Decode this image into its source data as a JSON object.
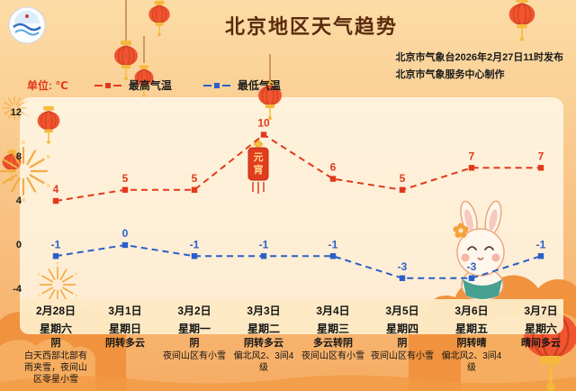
{
  "header": {
    "title": "北京地区天气趋势",
    "issued_by": "北京市气象台2026年2月27日11时发布",
    "produced_by": "北京市气象服务中心制作",
    "unit_label": "单位: ℃"
  },
  "chart_data": {
    "type": "line",
    "title": "北京地区天气趋势",
    "categories": [
      "2月28日",
      "3月1日",
      "3月2日",
      "3月3日",
      "3月4日",
      "3月5日",
      "3月6日",
      "3月7日"
    ],
    "weekdays": [
      "星期六",
      "星期日",
      "星期一",
      "星期二",
      "星期三",
      "星期四",
      "星期五",
      "星期六"
    ],
    "series": [
      {
        "name": "最高气温",
        "color": "#e2391b",
        "values": [
          4,
          5,
          5,
          10,
          6,
          5,
          7,
          7
        ]
      },
      {
        "name": "最低气温",
        "color": "#2a5fc7",
        "values": [
          -1,
          0,
          -1,
          -1,
          -1,
          -3,
          -3,
          -1
        ]
      }
    ],
    "ylim": [
      -4,
      12
    ],
    "yticks": [
      12,
      8,
      4,
      0,
      -4
    ],
    "grid": false,
    "legend_position": "top-left",
    "line_style": "dashed",
    "marker": "square"
  },
  "forecast": {
    "weather": [
      "阴",
      "阴转多云",
      "阴",
      "阴转多云",
      "多云转阴",
      "阴",
      "阴转晴",
      "晴间多云"
    ],
    "details": [
      "白天西部北部有雨夹雪，夜间山区零星小雪",
      "",
      "夜间山区有小雪",
      "偏北风2、3间4级",
      "夜间山区有小雪",
      "夜间山区有小雪",
      "偏北风2、3间4级",
      ""
    ]
  },
  "decor": {
    "ornament_chars": [
      "元",
      "宵"
    ],
    "colors": {
      "lantern_red": "#f25430",
      "lantern_gold": "#f6b93c",
      "cloud_orange": "#f0923e"
    }
  }
}
